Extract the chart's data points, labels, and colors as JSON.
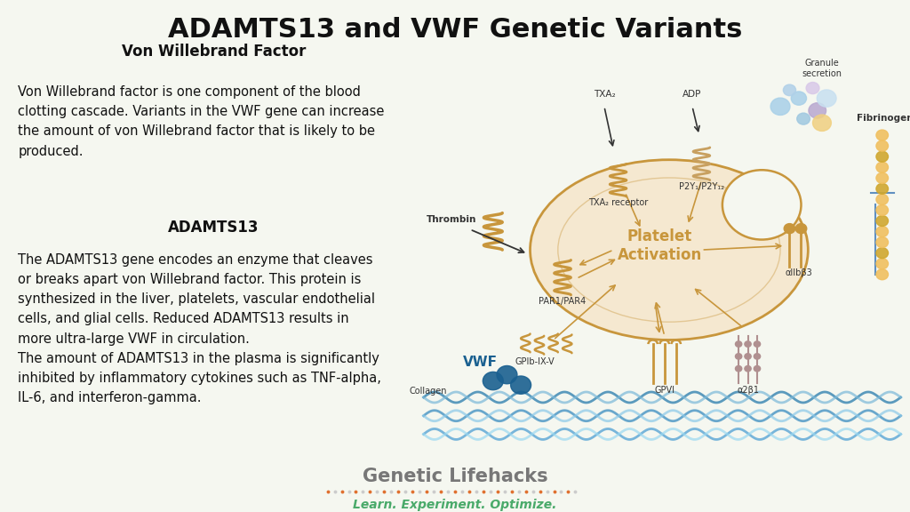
{
  "title": "ADAMTS13 and VWF Genetic Variants",
  "title_bg_color": "#c8d5c0",
  "main_bg_color": "#f5f7f0",
  "title_fontsize": 22,
  "title_font_weight": "bold",
  "vwf_heading": "Von Willebrand Factor",
  "vwf_heading_fontsize": 12,
  "vwf_text": "Von Willebrand factor is one component of the blood\nclotting cascade. Variants in the VWF gene can increase\nthe amount of von Willebrand factor that is likely to be\nproduced.",
  "vwf_text_fontsize": 10.5,
  "adamts_heading": "ADAMTS13",
  "adamts_heading_fontsize": 12,
  "adamts_text": "The ADAMTS13 gene encodes an enzyme that cleaves\nor breaks apart von Willebrand factor. This protein is\nsynthesized in the liver, platelets, vascular endothelial\ncells, and glial cells. Reduced ADAMTS13 results in\nmore ultra-large VWF in circulation.\nThe amount of ADAMTS13 in the plasma is significantly\ninhibited by inflammatory cytokines such as TNF-alpha,\nIL-6, and interferon-gamma.",
  "adamts_text_fontsize": 10.5,
  "brand_name": "Genetic Lifehacks",
  "brand_name_fontsize": 15,
  "brand_name_color": "#777777",
  "brand_tagline": "Learn. Experiment. Optimize.",
  "brand_tagline_fontsize": 10,
  "brand_tagline_color": "#4aaa6a",
  "brand_dot_color": "#e07030",
  "platelet_fill": "#f5e8d0",
  "platelet_edge": "#c8963c",
  "platelet_text_color": "#c8963c",
  "arrow_color": "#c8963c",
  "collagen_color1": "#4a90b8",
  "collagen_color2": "#7ab8d8",
  "vwf_color": "#1a6090",
  "thrombin_color": "#c8963c",
  "granule_colors": [
    "#a8d0e8",
    "#b8a8d0",
    "#f0c060"
  ],
  "fibrinogen_color": "#f0c060",
  "fibrinogen_line_color": "#6090c0",
  "a2b1_color": "#b09090",
  "label_fontsize": 7,
  "platelet_activation_fontsize": 12
}
